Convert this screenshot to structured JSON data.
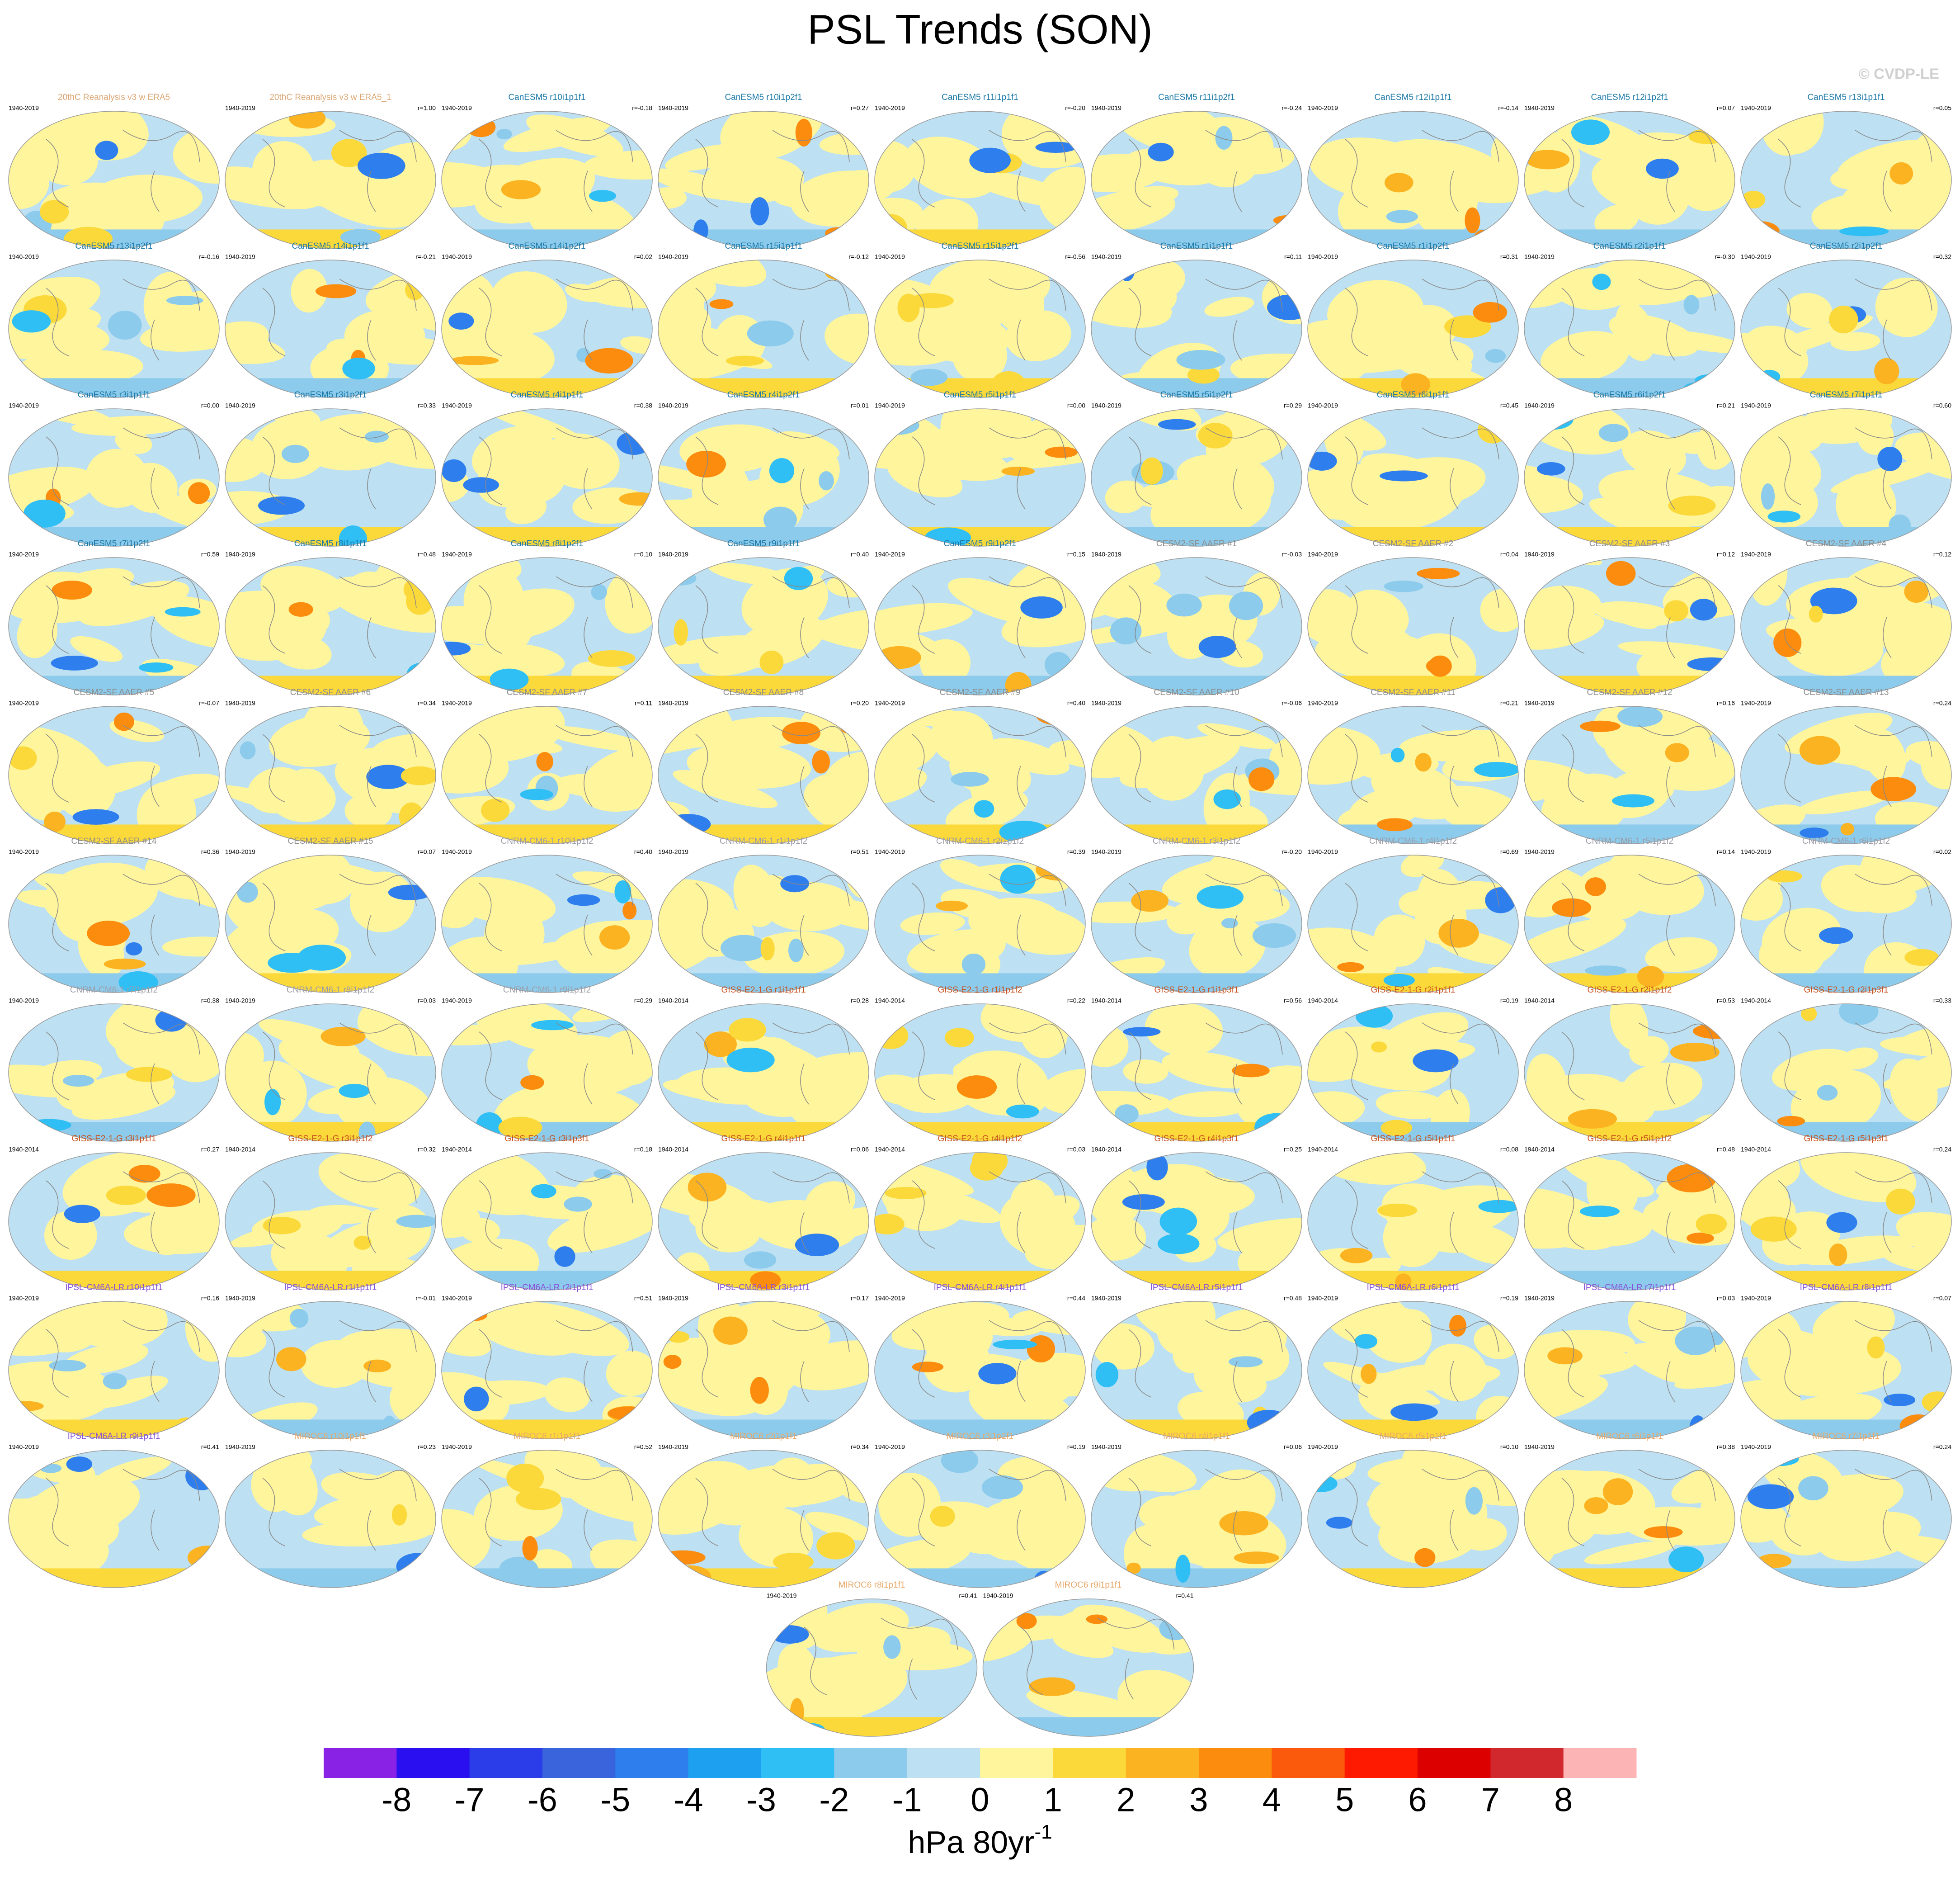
{
  "title": "PSL Trends (SON)",
  "copyright": "© CVDP-LE",
  "groups": [
    {
      "color": "#dca673",
      "panels": [
        {
          "label": "20thC Reanalysis v3 w ERA5",
          "period": "1940-2019"
        },
        {
          "label": "20thC Reanalysis v3 w ERA5_1",
          "period": "1940-2019",
          "r": "r=1.00"
        }
      ]
    },
    {
      "color": "#1a78a8",
      "panels": [
        {
          "label": "CanESM5 r10i1p1f1",
          "period": "1940-2019",
          "r": "r=-0.18"
        },
        {
          "label": "CanESM5 r10i1p2f1",
          "period": "1940-2019",
          "r": "r=0.27"
        },
        {
          "label": "CanESM5 r11i1p1f1",
          "period": "1940-2019",
          "r": "r=-0.20"
        },
        {
          "label": "CanESM5 r11i1p2f1",
          "period": "1940-2019",
          "r": "r=-0.24"
        },
        {
          "label": "CanESM5 r12i1p1f1",
          "period": "1940-2019",
          "r": "r=-0.14"
        },
        {
          "label": "CanESM5 r12i1p2f1",
          "period": "1940-2019",
          "r": "r=0.07"
        },
        {
          "label": "CanESM5 r13i1p1f1",
          "period": "1940-2019",
          "r": "r=0.05"
        },
        {
          "label": "CanESM5 r13i1p2f1",
          "period": "1940-2019",
          "r": "r=-0.16"
        },
        {
          "label": "CanESM5 r14i1p1f1",
          "period": "1940-2019",
          "r": "r=-0.21"
        },
        {
          "label": "CanESM5 r14i1p2f1",
          "period": "1940-2019",
          "r": "r=0.02"
        },
        {
          "label": "CanESM5 r15i1p1f1",
          "period": "1940-2019",
          "r": "r=-0.12"
        },
        {
          "label": "CanESM5 r15i1p2f1",
          "period": "1940-2019",
          "r": "r=-0.56"
        },
        {
          "label": "CanESM5 r1i1p1f1",
          "period": "1940-2019",
          "r": "r=0.11"
        },
        {
          "label": "CanESM5 r1i1p2f1",
          "period": "1940-2019",
          "r": "r=0.31"
        },
        {
          "label": "CanESM5 r2i1p1f1",
          "period": "1940-2019",
          "r": "r=-0.30"
        },
        {
          "label": "CanESM5 r2i1p2f1",
          "period": "1940-2019",
          "r": "r=0.32"
        },
        {
          "label": "CanESM5 r3i1p1f1",
          "period": "1940-2019",
          "r": "r=0.00"
        },
        {
          "label": "CanESM5 r3i1p2f1",
          "period": "1940-2019",
          "r": "r=0.33"
        },
        {
          "label": "CanESM5 r4i1p1f1",
          "period": "1940-2019",
          "r": "r=0.38"
        },
        {
          "label": "CanESM5 r4i1p2f1",
          "period": "1940-2019",
          "r": "r=0.01"
        },
        {
          "label": "CanESM5 r5i1p1f1",
          "period": "1940-2019",
          "r": "r=0.00"
        },
        {
          "label": "CanESM5 r5i1p2f1",
          "period": "1940-2019",
          "r": "r=0.29"
        },
        {
          "label": "CanESM5 r6i1p1f1",
          "period": "1940-2019",
          "r": "r=0.45"
        },
        {
          "label": "CanESM5 r6i1p2f1",
          "period": "1940-2019",
          "r": "r=0.21"
        },
        {
          "label": "CanESM5 r7i1p1f1",
          "period": "1940-2019",
          "r": "r=0.60"
        },
        {
          "label": "CanESM5 r7i1p2f1",
          "period": "1940-2019",
          "r": "r=0.59"
        },
        {
          "label": "CanESM5 r8i1p1f1",
          "period": "1940-2019",
          "r": "r=0.48"
        },
        {
          "label": "CanESM5 r8i1p2f1",
          "period": "1940-2019",
          "r": "r=0.10"
        },
        {
          "label": "CanESM5 r9i1p1f1",
          "period": "1940-2019",
          "r": "r=0.40"
        },
        {
          "label": "CanESM5 r9i1p2f1",
          "period": "1940-2019",
          "r": "r=0.15"
        }
      ]
    },
    {
      "color": "#8c8c8c",
      "panels": [
        {
          "label": "CESM2-SF AAER #1",
          "period": "1940-2019",
          "r": "r=-0.03"
        },
        {
          "label": "CESM2-SF AAER #2",
          "period": "1940-2019",
          "r": "r=0.04"
        },
        {
          "label": "CESM2-SF AAER #3",
          "period": "1940-2019",
          "r": "r=0.12"
        },
        {
          "label": "CESM2-SF AAER #4",
          "period": "1940-2019",
          "r": "r=0.12"
        },
        {
          "label": "CESM2-SF AAER #5",
          "period": "1940-2019",
          "r": "r=-0.07"
        },
        {
          "label": "CESM2-SF AAER #6",
          "period": "1940-2019",
          "r": "r=0.34"
        },
        {
          "label": "CESM2-SF AAER #7",
          "period": "1940-2019",
          "r": "r=0.11"
        },
        {
          "label": "CESM2-SF AAER #8",
          "period": "1940-2019",
          "r": "r=0.20"
        },
        {
          "label": "CESM2-SF AAER #9",
          "period": "1940-2019",
          "r": "r=0.40"
        },
        {
          "label": "CESM2-SF AAER #10",
          "period": "1940-2019",
          "r": "r=-0.06"
        },
        {
          "label": "CESM2-SF AAER #11",
          "period": "1940-2019",
          "r": "r=0.21"
        },
        {
          "label": "CESM2-SF AAER #12",
          "period": "1940-2019",
          "r": "r=0.16"
        },
        {
          "label": "CESM2-SF AAER #13",
          "period": "1940-2019",
          "r": "r=0.24"
        },
        {
          "label": "CESM2-SF AAER #14",
          "period": "1940-2019",
          "r": "r=0.36"
        },
        {
          "label": "CESM2-SF AAER #15",
          "period": "1940-2019",
          "r": "r=0.07"
        }
      ]
    },
    {
      "color": "#9c9ca8",
      "panels": [
        {
          "label": "CNRM-CM6-1 r10i1p1f2",
          "period": "1940-2019",
          "r": "r=0.40"
        },
        {
          "label": "CNRM-CM6-1 r1i1p1f2",
          "period": "1940-2019",
          "r": "r=0.51"
        },
        {
          "label": "CNRM-CM6-1 r2i1p1f2",
          "period": "1940-2019",
          "r": "r=0.39"
        },
        {
          "label": "CNRM-CM6-1 r3i1p1f2",
          "period": "1940-2019",
          "r": "r=-0.20"
        },
        {
          "label": "CNRM-CM6-1 r4i1p1f2",
          "period": "1940-2019",
          "r": "r=0.69"
        },
        {
          "label": "CNRM-CM6-1 r5i1p1f2",
          "period": "1940-2019",
          "r": "r=0.14"
        },
        {
          "label": "CNRM-CM6-1 r6i1p1f2",
          "period": "1940-2019",
          "r": "r=0.02"
        },
        {
          "label": "CNRM-CM6-1 r7i1p1f2",
          "period": "1940-2019",
          "r": "r=0.38"
        },
        {
          "label": "CNRM-CM6-1 r8i1p1f2",
          "period": "1940-2019",
          "r": "r=0.03"
        },
        {
          "label": "CNRM-CM6-1 r9i1p1f2",
          "period": "1940-2019",
          "r": "r=0.29"
        }
      ]
    },
    {
      "color": "#c8501e",
      "panels": [
        {
          "label": "GISS-E2-1-G r1i1p1f1",
          "period": "1940-2014",
          "r": "r=0.28"
        },
        {
          "label": "GISS-E2-1-G r1i1p1f2",
          "period": "1940-2014",
          "r": "r=0.22"
        },
        {
          "label": "GISS-E2-1-G r1i1p3f1",
          "period": "1940-2014",
          "r": "r=0.56"
        },
        {
          "label": "GISS-E2-1-G r2i1p1f1",
          "period": "1940-2014",
          "r": "r=0.19"
        },
        {
          "label": "GISS-E2-1-G r2i1p1f2",
          "period": "1940-2014",
          "r": "r=0.53"
        },
        {
          "label": "GISS-E2-1-G r2i1p3f1",
          "period": "1940-2014",
          "r": "r=0.33"
        },
        {
          "label": "GISS-E2-1-G r3i1p1f1",
          "period": "1940-2014",
          "r": "r=0.27"
        },
        {
          "label": "GISS-E2-1-G r3i1p1f2",
          "period": "1940-2014",
          "r": "r=0.32"
        },
        {
          "label": "GISS-E2-1-G r3i1p3f1",
          "period": "1940-2014",
          "r": "r=0.18"
        },
        {
          "label": "GISS-E2-1-G r4i1p1f1",
          "period": "1940-2014",
          "r": "r=0.06"
        },
        {
          "label": "GISS-E2-1-G r4i1p1f2",
          "period": "1940-2014",
          "r": "r=0.03"
        },
        {
          "label": "GISS-E2-1-G r4i1p3f1",
          "period": "1940-2014",
          "r": "r=0.25"
        },
        {
          "label": "GISS-E2-1-G r5i1p1f1",
          "period": "1940-2014",
          "r": "r=0.08"
        },
        {
          "label": "GISS-E2-1-G r5i1p1f2",
          "period": "1940-2014",
          "r": "r=0.48"
        },
        {
          "label": "GISS-E2-1-G r5i1p3f1",
          "period": "1940-2014",
          "r": "r=0.24"
        }
      ]
    },
    {
      "color": "#8a50d8",
      "panels": [
        {
          "label": "IPSL-CM6A-LR r10i1p1f1",
          "period": "1940-2019",
          "r": "r=0.16"
        },
        {
          "label": "IPSL-CM6A-LR r1i1p1f1",
          "period": "1940-2019",
          "r": "r=-0.01"
        },
        {
          "label": "IPSL-CM6A-LR r2i1p1f1",
          "period": "1940-2019",
          "r": "r=0.51"
        },
        {
          "label": "IPSL-CM6A-LR r3i1p1f1",
          "period": "1940-2019",
          "r": "r=0.17"
        },
        {
          "label": "IPSL-CM6A-LR r4i1p1f1",
          "period": "1940-2019",
          "r": "r=0.44"
        },
        {
          "label": "IPSL-CM6A-LR r5i1p1f1",
          "period": "1940-2019",
          "r": "r=0.48"
        },
        {
          "label": "IPSL-CM6A-LR r6i1p1f1",
          "period": "1940-2019",
          "r": "r=0.19"
        },
        {
          "label": "IPSL-CM6A-LR r7i1p1f1",
          "period": "1940-2019",
          "r": "r=0.03"
        },
        {
          "label": "IPSL-CM6A-LR r8i1p1f1",
          "period": "1940-2019",
          "r": "r=0.07"
        },
        {
          "label": "IPSL-CM6A-LR r9i1p1f1",
          "period": "1940-2019",
          "r": "r=0.41"
        }
      ]
    },
    {
      "color": "#e8a868",
      "panels": [
        {
          "label": "MIROC6 r10i1p1f1",
          "period": "1940-2019",
          "r": "r=0.23"
        },
        {
          "label": "MIROC6 r1i1p1f1",
          "period": "1940-2019",
          "r": "r=0.52"
        },
        {
          "label": "MIROC6 r2i1p1f1",
          "period": "1940-2019",
          "r": "r=0.34"
        },
        {
          "label": "MIROC6 r3i1p1f1",
          "period": "1940-2019",
          "r": "r=0.19"
        },
        {
          "label": "MIROC6 r4i1p1f1",
          "period": "1940-2019",
          "r": "r=0.06"
        },
        {
          "label": "MIROC6 r5i1p1f1",
          "period": "1940-2019",
          "r": "r=0.10"
        },
        {
          "label": "MIROC6 r6i1p1f1",
          "period": "1940-2019",
          "r": "r=0.38"
        },
        {
          "label": "MIROC6 r7i1p1f1",
          "period": "1940-2019",
          "r": "r=0.24"
        },
        {
          "label": "MIROC6 r8i1p1f1",
          "period": "1940-2019",
          "r": "r=0.41"
        },
        {
          "label": "MIROC6 r9i1p1f1",
          "period": "1940-2019",
          "r": "r=0.41"
        }
      ]
    }
  ],
  "colorbar": {
    "levels": [
      -8,
      -7,
      -6,
      -5,
      -4,
      -3,
      -2,
      -1,
      0,
      1,
      2,
      3,
      4,
      5,
      6,
      7,
      8
    ],
    "colors": [
      "#8a22e6",
      "#2a10f0",
      "#2a3de8",
      "#3a64dc",
      "#2e7eee",
      "#1ea0f0",
      "#30bff5",
      "#8ccbeb",
      "#bde0f2",
      "#fff59c",
      "#fcd93a",
      "#fbb321",
      "#fb8c0e",
      "#fb5a0c",
      "#fd1a00",
      "#dd0000",
      "#d0282c",
      "#fcb4b4"
    ],
    "unit": "hPa 80yr",
    "unit_exponent": "-1"
  }
}
